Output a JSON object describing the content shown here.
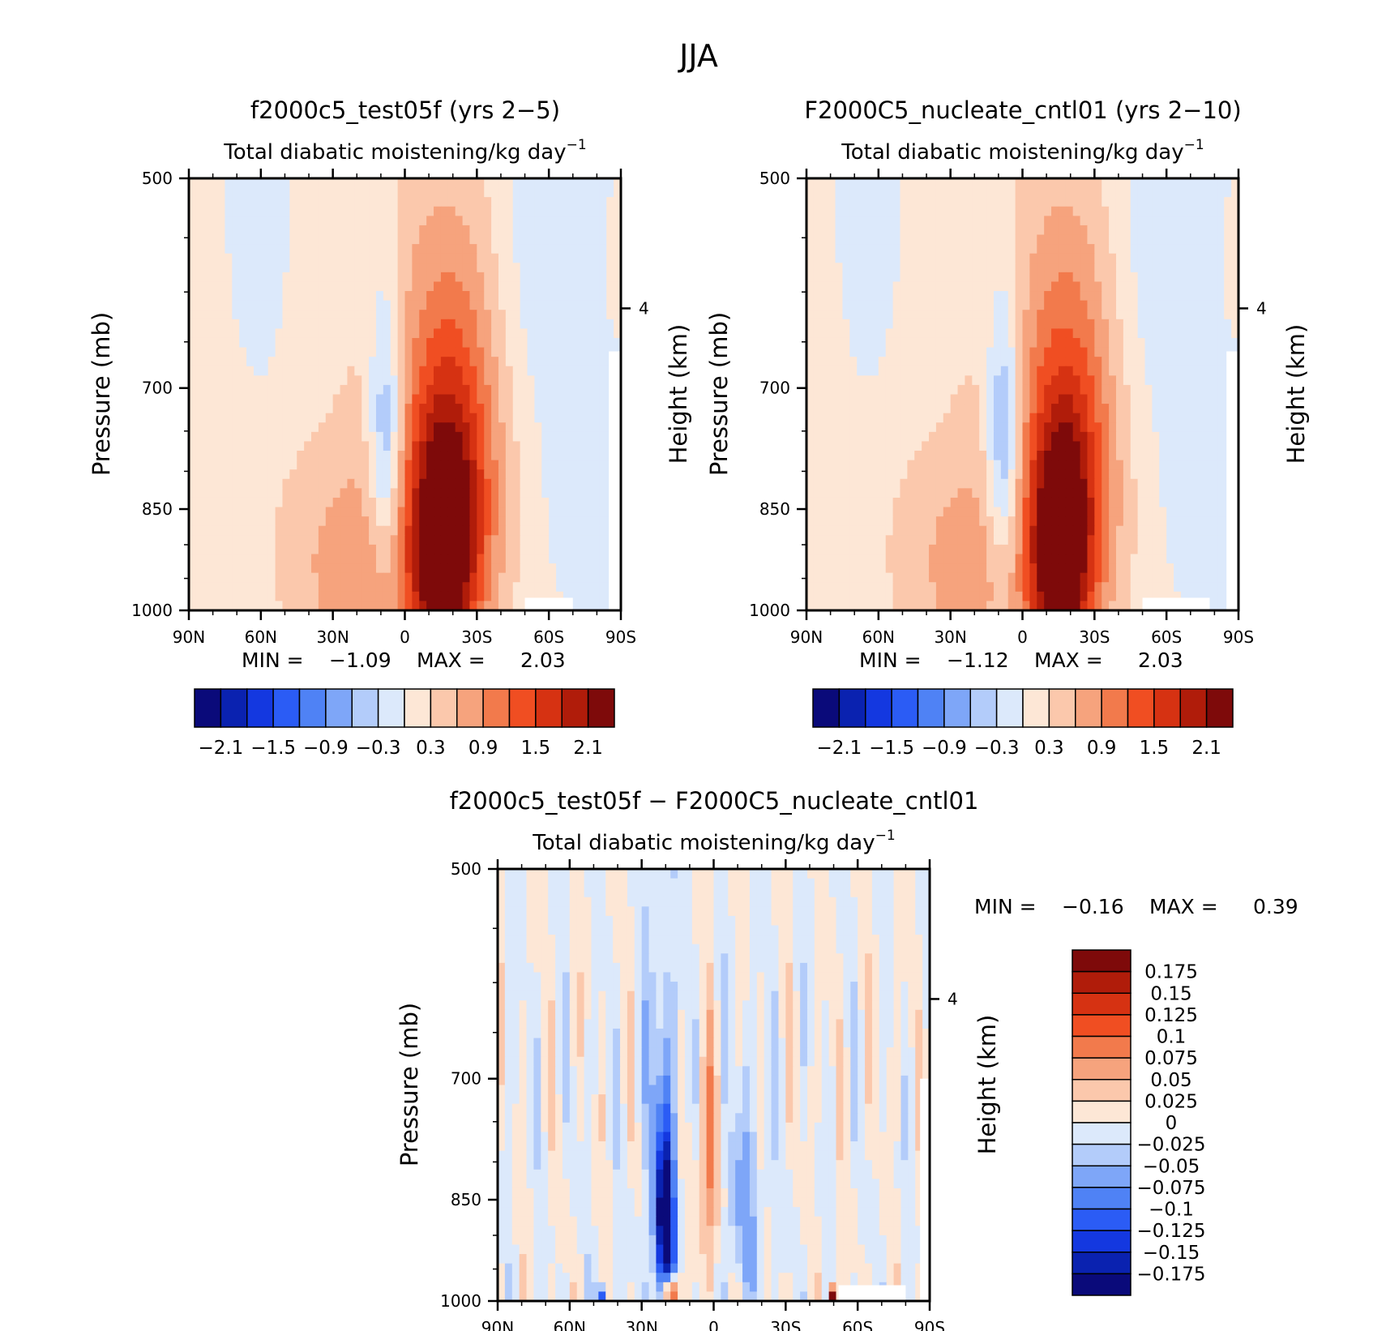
{
  "chart_data": {
    "type": "heatmap",
    "title": "JJA",
    "colors": {
      "main": [
        "#0a0a7a",
        "#0a22b0",
        "#1438e0",
        "#2b5cf5",
        "#4f82f5",
        "#7ea6f8",
        "#b3ccfa",
        "#dce9fb",
        "#fde7d6",
        "#fbc8ac",
        "#f6a37d",
        "#f27a4c",
        "#f04e22",
        "#d63212",
        "#b01c0a",
        "#7e0a0a"
      ],
      "land": "#ffffff"
    },
    "panels": [
      {
        "id": "p1",
        "title": "f2000c5_test05f (yrs 2−5)",
        "subtitle": "Total diabatic moistening/kg day",
        "subtitle_sup": "−1",
        "ylabel": "Pressure (mb)",
        "ylabel2": "Height (km)",
        "yticks": [
          "500",
          "700",
          "850",
          "1000"
        ],
        "ytick_values": [
          500,
          700,
          850,
          1000
        ],
        "y2ticks": [
          "4"
        ],
        "xticks": [
          "90N",
          "60N",
          "30N",
          "0",
          "30S",
          "60S",
          "90S"
        ],
        "min_label": "MIN =",
        "min_value": "−1.09",
        "max_label": "MAX =",
        "max_value": "2.03",
        "colorbar_labels": [
          "−2.1",
          "−1.5",
          "−0.9",
          "−0.3",
          "0.3",
          "0.9",
          "1.5",
          "2.1"
        ],
        "features": [
          {
            "lat": -15,
            "p": 930,
            "sx": 14,
            "sy": 190,
            "a": 2.0
          },
          {
            "lat": -22,
            "p": 830,
            "sx": 18,
            "sy": 230,
            "a": 0.9
          },
          {
            "lat": -25,
            "p": 780,
            "sx": 34,
            "sy": 300,
            "a": 0.45
          },
          {
            "lat": -8,
            "p": 640,
            "sx": 30,
            "sy": 240,
            "a": 0.35
          },
          {
            "lat": 8,
            "p": 760,
            "sx": 7,
            "sy": 170,
            "a": -1.05
          },
          {
            "lat": 20,
            "p": 950,
            "sx": 22,
            "sy": 160,
            "a": 0.55
          },
          {
            "lat": 40,
            "p": 900,
            "sx": 40,
            "sy": 230,
            "a": 0.3
          },
          {
            "lat": 60,
            "p": 560,
            "sx": 8,
            "sy": 120,
            "a": -0.3
          },
          {
            "lat": -52,
            "p": 600,
            "sx": 18,
            "sy": 250,
            "a": -0.32
          },
          {
            "lat": -75,
            "p": 850,
            "sx": 14,
            "sy": 120,
            "a": -0.3
          }
        ],
        "land_mask": [
          {
            "from_lat": -50,
            "to_lat": -70,
            "from_p": 980
          },
          {
            "from_lat": -85,
            "to_lat": -90,
            "from_p": 660
          }
        ]
      },
      {
        "id": "p2",
        "title": "F2000C5_nucleate_cntl01 (yrs 2−10)",
        "subtitle": "Total diabatic moistening/kg day",
        "subtitle_sup": "−1",
        "ylabel": "Pressure (mb)",
        "ylabel2": "Height (km)",
        "yticks": [
          "500",
          "700",
          "850",
          "1000"
        ],
        "ytick_values": [
          500,
          700,
          850,
          1000
        ],
        "y2ticks": [
          "4"
        ],
        "xticks": [
          "90N",
          "60N",
          "30N",
          "0",
          "30S",
          "60S",
          "90S"
        ],
        "min_label": "MIN =",
        "min_value": "−1.12",
        "max_label": "MAX =",
        "max_value": "2.03",
        "colorbar_labels": [
          "−2.1",
          "−1.5",
          "−0.9",
          "−0.3",
          "0.3",
          "0.9",
          "1.5",
          "2.1"
        ],
        "features": [
          {
            "lat": -15,
            "p": 930,
            "sx": 13,
            "sy": 190,
            "a": 2.0
          },
          {
            "lat": -22,
            "p": 830,
            "sx": 17,
            "sy": 230,
            "a": 0.85
          },
          {
            "lat": -25,
            "p": 780,
            "sx": 34,
            "sy": 300,
            "a": 0.45
          },
          {
            "lat": -8,
            "p": 640,
            "sx": 30,
            "sy": 240,
            "a": 0.35
          },
          {
            "lat": 8,
            "p": 760,
            "sx": 7,
            "sy": 170,
            "a": -1.1
          },
          {
            "lat": 22,
            "p": 950,
            "sx": 22,
            "sy": 160,
            "a": 0.5
          },
          {
            "lat": 40,
            "p": 900,
            "sx": 40,
            "sy": 230,
            "a": 0.3
          },
          {
            "lat": 63,
            "p": 560,
            "sx": 8,
            "sy": 120,
            "a": -0.3
          },
          {
            "lat": -52,
            "p": 600,
            "sx": 18,
            "sy": 250,
            "a": -0.32
          },
          {
            "lat": -75,
            "p": 850,
            "sx": 14,
            "sy": 120,
            "a": -0.3
          }
        ],
        "land_mask": [
          {
            "from_lat": -50,
            "to_lat": -78,
            "from_p": 980
          },
          {
            "from_lat": -85,
            "to_lat": -90,
            "from_p": 660
          }
        ]
      },
      {
        "id": "p3",
        "title": "f2000c5_test05f − F2000C5_nucleate_cntl01",
        "subtitle": "Total diabatic moistening/kg day",
        "subtitle_sup": "−1",
        "ylabel": "Pressure (mb)",
        "ylabel2": "Height (km)",
        "yticks": [
          "500",
          "700",
          "850",
          "1000"
        ],
        "ytick_values": [
          500,
          700,
          850,
          1000
        ],
        "y2ticks": [
          "4"
        ],
        "xticks": [
          "90N",
          "60N",
          "30N",
          "0",
          "30S",
          "60S",
          "90S"
        ],
        "min_label": "MIN =",
        "min_value": "−0.16",
        "max_label": "MAX =",
        "max_value": "0.39",
        "colorbar_labels": [
          "0.175",
          "0.15",
          "0.125",
          "0.1",
          "0.075",
          "0.05",
          "0.025",
          "0",
          "−0.025",
          "−0.05",
          "−0.075",
          "−0.1",
          "−0.125",
          "−0.15",
          "−0.175"
        ],
        "features": [
          {
            "lat": 20,
            "p": 880,
            "sx": 4,
            "sy": 120,
            "a": -0.17
          },
          {
            "lat": 22,
            "p": 780,
            "sx": 7,
            "sy": 260,
            "a": -0.06
          },
          {
            "lat": 2,
            "p": 820,
            "sx": 5,
            "sy": 140,
            "a": 0.085
          },
          {
            "lat": -12,
            "p": 860,
            "sx": 10,
            "sy": 150,
            "a": -0.05
          },
          {
            "lat": 18,
            "p": 985,
            "sx": 2,
            "sy": 25,
            "a": 0.3
          },
          {
            "lat": 46,
            "p": 995,
            "sx": 1.5,
            "sy": 20,
            "a": -0.15
          },
          {
            "lat": -50,
            "p": 995,
            "sx": 1.5,
            "sy": 18,
            "a": 0.25
          }
        ],
        "stripes": {
          "amp": 0.028,
          "wave": 11
        },
        "land_mask": [
          {
            "from_lat": -52,
            "to_lat": -80,
            "from_p": 975
          },
          {
            "from_lat": -86,
            "to_lat": -90,
            "from_p": 700
          }
        ]
      }
    ]
  }
}
